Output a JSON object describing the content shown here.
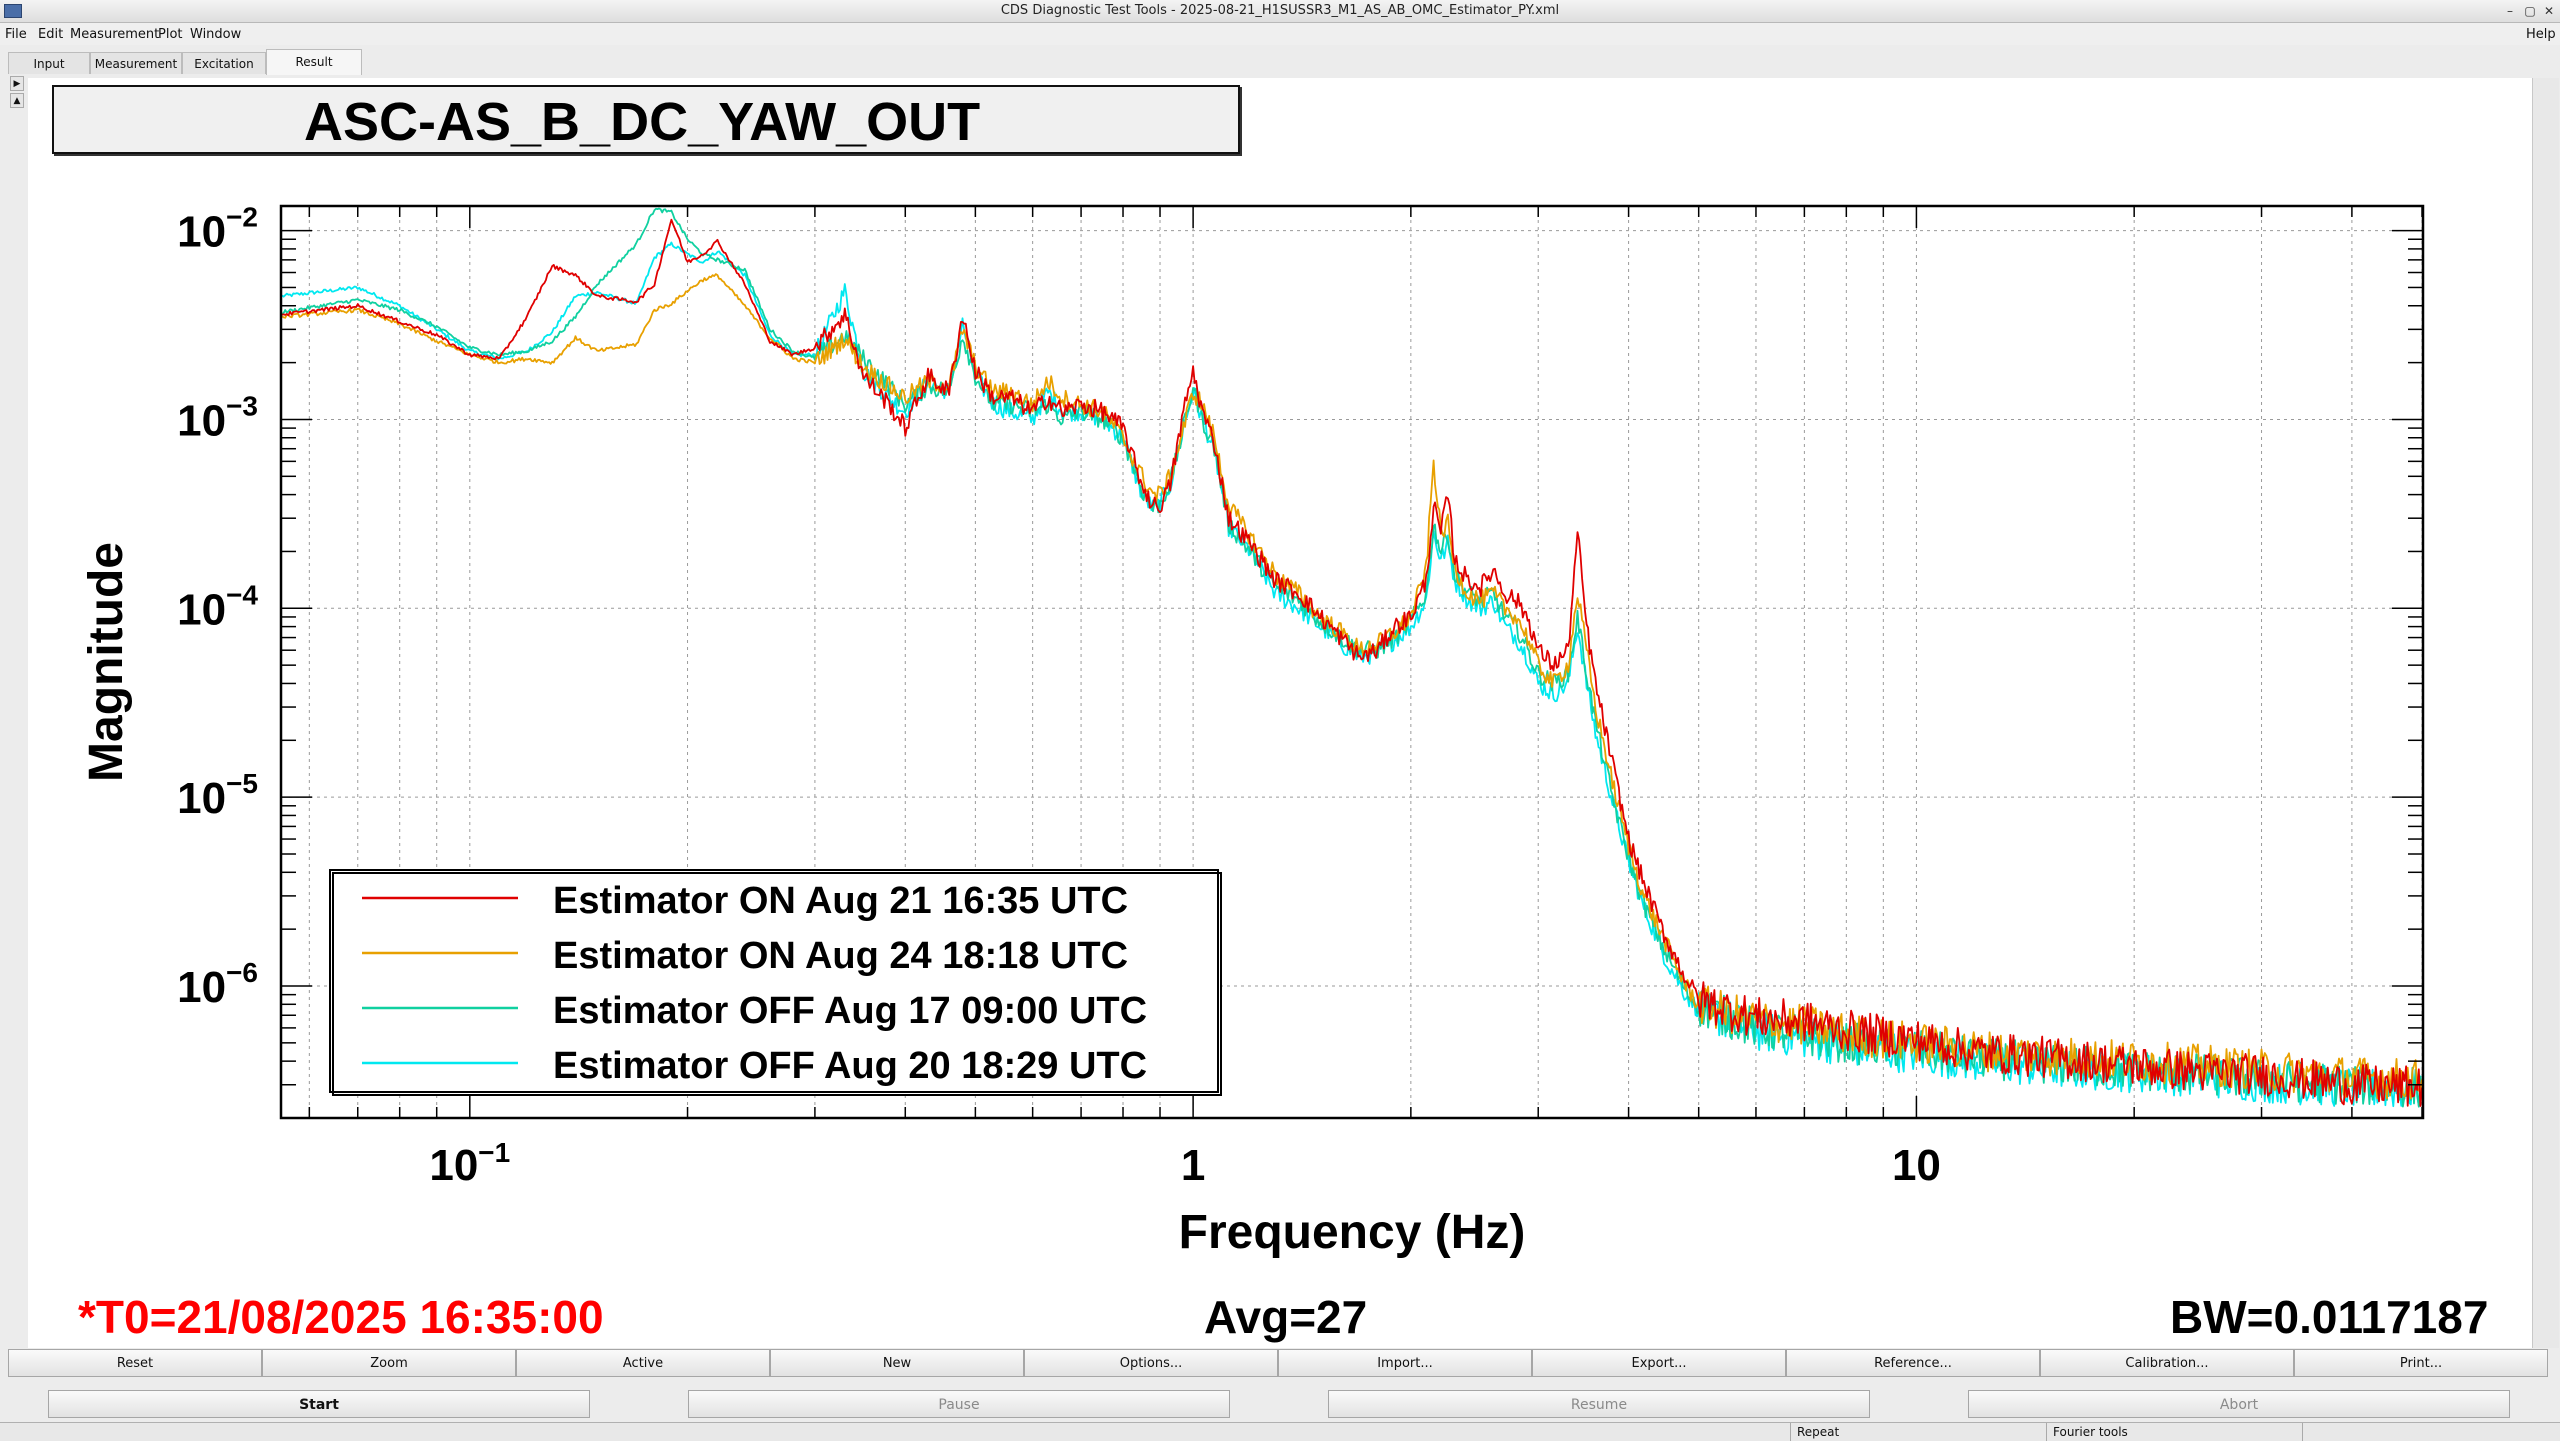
{
  "window": {
    "title": "CDS Diagnostic Test Tools - 2025-08-21_H1SUSSR3_M1_AS_AB_OMC_Estimator_PY.xml",
    "controls": [
      "–",
      "▢",
      "✕"
    ]
  },
  "menu": {
    "items": [
      "File",
      "Edit",
      "Measurement",
      "Plot",
      "Window"
    ],
    "help": "Help"
  },
  "tabs": [
    "Input",
    "Measurement",
    "Excitation",
    "Result"
  ],
  "active_tab": "Result",
  "plot": {
    "title": "ASC-AS_B_DC_YAW_OUT",
    "footer": {
      "t0": "*T0=21/08/2025 16:35:00",
      "avg": "Avg=27",
      "bw": "BW=0.0117187"
    },
    "colors": {
      "t0": "#ff0000"
    }
  },
  "chart_data": {
    "type": "line",
    "title": "ASC-AS_B_DC_YAW_OUT",
    "xlabel": "Frequency (Hz)",
    "ylabel": "Magnitude",
    "xscale": "log",
    "yscale": "log",
    "xlim": [
      0.055,
      50
    ],
    "ylim": [
      2e-07,
      0.0135
    ],
    "grid": true,
    "legend_position": "bottom-left",
    "x_tick_labels": [
      {
        "value": 0.1,
        "base": "10",
        "exp": "−1"
      },
      {
        "value": 1,
        "base": "1",
        "exp": ""
      },
      {
        "value": 10,
        "base": "10",
        "exp": ""
      }
    ],
    "y_tick_labels": [
      {
        "value": 0.01,
        "base": "10",
        "exp": "−2"
      },
      {
        "value": 0.001,
        "base": "10",
        "exp": "−3"
      },
      {
        "value": 0.0001,
        "base": "10",
        "exp": "−4"
      },
      {
        "value": 1e-05,
        "base": "10",
        "exp": "−5"
      },
      {
        "value": 1e-06,
        "base": "10",
        "exp": "−6"
      }
    ],
    "series": [
      {
        "name": "Estimator ON Aug 21 16:35 UTC",
        "color": "#e00000",
        "x": [
          0.055,
          0.07,
          0.08,
          0.09,
          0.1,
          0.11,
          0.12,
          0.13,
          0.14,
          0.15,
          0.17,
          0.18,
          0.19,
          0.2,
          0.21,
          0.22,
          0.24,
          0.26,
          0.28,
          0.3,
          0.33,
          0.35,
          0.38,
          0.4,
          0.43,
          0.46,
          0.48,
          0.5,
          0.53,
          0.56,
          0.6,
          0.63,
          0.66,
          0.7,
          0.75,
          0.8,
          0.85,
          0.88,
          0.9,
          0.93,
          0.97,
          1.0,
          1.03,
          1.07,
          1.12,
          1.2,
          1.3,
          1.4,
          1.5,
          1.6,
          1.7,
          1.8,
          1.9,
          2.0,
          2.1,
          2.15,
          2.2,
          2.25,
          2.3,
          2.4,
          2.5,
          2.6,
          2.7,
          2.8,
          2.9,
          3.0,
          3.15,
          3.3,
          3.4,
          3.5,
          3.6,
          3.8,
          4.0,
          4.2,
          4.5,
          4.8,
          5.0,
          5.5,
          6.0,
          7.0,
          8.0,
          10.0,
          12.0,
          15.0,
          20.0,
          25.0,
          30.0,
          40.0,
          50.0
        ],
        "y": [
          0.0036,
          0.004,
          0.0033,
          0.0028,
          0.0022,
          0.0021,
          0.0035,
          0.0065,
          0.0058,
          0.0045,
          0.0042,
          0.0052,
          0.0115,
          0.0068,
          0.0075,
          0.0088,
          0.0052,
          0.0026,
          0.0022,
          0.0024,
          0.0036,
          0.0017,
          0.0012,
          0.0009,
          0.0017,
          0.0014,
          0.0036,
          0.0018,
          0.0013,
          0.0013,
          0.0011,
          0.0013,
          0.0011,
          0.0012,
          0.0011,
          0.0009,
          0.00045,
          0.00035,
          0.00035,
          0.00045,
          0.0011,
          0.0018,
          0.0011,
          0.00075,
          0.0003,
          0.00022,
          0.00014,
          0.00012,
          9e-05,
          7e-05,
          5.5e-05,
          6e-05,
          8e-05,
          9e-05,
          0.00014,
          0.00035,
          0.00025,
          0.0004,
          0.00018,
          0.00014,
          0.00013,
          0.00016,
          0.00012,
          0.00011,
          9e-05,
          6e-05,
          5e-05,
          6e-05,
          0.00025,
          8e-05,
          4e-05,
          1.5e-05,
          6e-06,
          3.5e-06,
          1.8e-06,
          1.1e-06,
          8.5e-07,
          7.5e-07,
          6.8e-07,
          6.5e-07,
          5.8e-07,
          5.2e-07,
          4.5e-07,
          4.2e-07,
          3.8e-07,
          3.5e-07,
          3.4e-07,
          3e-07,
          2.9e-07
        ]
      },
      {
        "name": "Estimator ON Aug 24 18:18 UTC",
        "color": "#e8a000",
        "x": [
          0.055,
          0.07,
          0.08,
          0.09,
          0.1,
          0.11,
          0.12,
          0.13,
          0.14,
          0.15,
          0.17,
          0.18,
          0.19,
          0.2,
          0.21,
          0.22,
          0.24,
          0.26,
          0.28,
          0.3,
          0.33,
          0.35,
          0.38,
          0.4,
          0.43,
          0.46,
          0.48,
          0.5,
          0.53,
          0.56,
          0.6,
          0.63,
          0.66,
          0.7,
          0.75,
          0.8,
          0.85,
          0.88,
          0.9,
          0.93,
          0.97,
          1.0,
          1.03,
          1.07,
          1.12,
          1.2,
          1.3,
          1.4,
          1.5,
          1.6,
          1.7,
          1.8,
          1.9,
          2.0,
          2.1,
          2.15,
          2.2,
          2.25,
          2.3,
          2.4,
          2.5,
          2.6,
          2.7,
          2.8,
          2.9,
          3.0,
          3.15,
          3.3,
          3.4,
          3.5,
          3.6,
          3.8,
          4.0,
          4.2,
          4.5,
          4.8,
          5.0,
          5.5,
          6.0,
          7.0,
          8.0,
          10.0,
          12.0,
          15.0,
          20.0,
          25.0,
          30.0,
          40.0,
          50.0
        ],
        "y": [
          0.0035,
          0.0038,
          0.0032,
          0.0026,
          0.0022,
          0.002,
          0.0021,
          0.002,
          0.0027,
          0.0023,
          0.0025,
          0.0038,
          0.0041,
          0.0048,
          0.0055,
          0.0058,
          0.004,
          0.0027,
          0.0021,
          0.002,
          0.0027,
          0.0019,
          0.0015,
          0.0013,
          0.0016,
          0.0015,
          0.003,
          0.0019,
          0.0014,
          0.0014,
          0.0012,
          0.0016,
          0.0013,
          0.0012,
          0.0011,
          0.0008,
          0.0005,
          0.0004,
          0.0004,
          0.0005,
          0.0009,
          0.0014,
          0.0012,
          0.0008,
          0.00035,
          0.00024,
          0.00015,
          0.00012,
          9e-05,
          7.5e-05,
          6e-05,
          6.5e-05,
          7.5e-05,
          9e-05,
          0.00016,
          0.0006,
          0.00025,
          0.00028,
          0.00016,
          0.00012,
          0.00011,
          0.00012,
          0.0001,
          9e-05,
          7e-05,
          5e-05,
          4e-05,
          5e-05,
          0.00012,
          6e-05,
          3e-05,
          1.2e-05,
          5.5e-06,
          3e-06,
          1.7e-06,
          1e-06,
          8e-07,
          7.2e-07,
          6.6e-07,
          6.2e-07,
          5.6e-07,
          5e-07,
          4.6e-07,
          4.3e-07,
          4e-07,
          3.8e-07,
          3.6e-07,
          3.3e-07,
          3.2e-07
        ]
      },
      {
        "name": "Estimator OFF Aug 17 09:00 UTC",
        "color": "#10d0a0",
        "x": [
          0.055,
          0.07,
          0.08,
          0.09,
          0.1,
          0.11,
          0.12,
          0.13,
          0.14,
          0.15,
          0.17,
          0.18,
          0.19,
          0.2,
          0.21,
          0.22,
          0.24,
          0.26,
          0.28,
          0.3,
          0.33,
          0.35,
          0.38,
          0.4,
          0.43,
          0.46,
          0.48,
          0.5,
          0.53,
          0.56,
          0.6,
          0.63,
          0.66,
          0.7,
          0.75,
          0.8,
          0.85,
          0.88,
          0.9,
          0.93,
          0.97,
          1.0,
          1.03,
          1.07,
          1.12,
          1.2,
          1.3,
          1.4,
          1.5,
          1.6,
          1.7,
          1.8,
          1.9,
          2.0,
          2.1,
          2.15,
          2.2,
          2.25,
          2.3,
          2.4,
          2.5,
          2.6,
          2.7,
          2.8,
          2.9,
          3.0,
          3.15,
          3.3,
          3.4,
          3.5,
          3.6,
          3.8,
          4.0,
          4.2,
          4.5,
          4.8,
          5.0,
          5.5,
          6.0,
          7.0,
          8.0,
          10.0,
          12.0,
          15.0,
          20.0,
          25.0,
          30.0,
          40.0,
          50.0
        ],
        "y": [
          0.0037,
          0.0043,
          0.0038,
          0.0031,
          0.0024,
          0.0022,
          0.0023,
          0.0026,
          0.0035,
          0.0052,
          0.0085,
          0.013,
          0.0125,
          0.009,
          0.0075,
          0.007,
          0.0062,
          0.003,
          0.0023,
          0.0021,
          0.0028,
          0.0021,
          0.0015,
          0.0012,
          0.0015,
          0.0014,
          0.0028,
          0.0017,
          0.0012,
          0.0012,
          0.0011,
          0.0012,
          0.001,
          0.0011,
          0.001,
          0.0008,
          0.00042,
          0.00034,
          0.00036,
          0.00046,
          0.0009,
          0.0015,
          0.001,
          0.0007,
          0.00028,
          0.0002,
          0.00013,
          0.00011,
          8.5e-05,
          7e-05,
          6e-05,
          6e-05,
          7e-05,
          8.5e-05,
          0.00012,
          0.00028,
          0.0002,
          0.00025,
          0.00015,
          0.00012,
          0.00011,
          0.00012,
          9e-05,
          8e-05,
          6e-05,
          4.5e-05,
          4e-05,
          4.5e-05,
          9e-05,
          4.5e-05,
          2.5e-05,
          1e-05,
          4.8e-06,
          2.7e-06,
          1.5e-06,
          9.5e-07,
          7.8e-07,
          6.8e-07,
          6e-07,
          5.5e-07,
          5e-07,
          4.6e-07,
          4.2e-07,
          3.9e-07,
          3.6e-07,
          3.4e-07,
          3.2e-07,
          3e-07,
          2.9e-07
        ]
      },
      {
        "name": "Estimator OFF Aug 20 18:29 UTC",
        "color": "#00e8f0",
        "x": [
          0.055,
          0.07,
          0.08,
          0.09,
          0.1,
          0.11,
          0.12,
          0.13,
          0.14,
          0.15,
          0.17,
          0.18,
          0.19,
          0.2,
          0.21,
          0.22,
          0.24,
          0.26,
          0.28,
          0.3,
          0.33,
          0.35,
          0.38,
          0.4,
          0.43,
          0.46,
          0.48,
          0.5,
          0.53,
          0.56,
          0.6,
          0.63,
          0.66,
          0.7,
          0.75,
          0.8,
          0.85,
          0.88,
          0.9,
          0.93,
          0.97,
          1.0,
          1.03,
          1.07,
          1.12,
          1.2,
          1.3,
          1.4,
          1.5,
          1.6,
          1.7,
          1.8,
          1.9,
          2.0,
          2.1,
          2.15,
          2.2,
          2.25,
          2.3,
          2.4,
          2.5,
          2.6,
          2.7,
          2.8,
          2.9,
          3.0,
          3.15,
          3.3,
          3.4,
          3.5,
          3.6,
          3.8,
          4.0,
          4.2,
          4.5,
          4.8,
          5.0,
          5.5,
          6.0,
          7.0,
          8.0,
          10.0,
          12.0,
          15.0,
          20.0,
          25.0,
          30.0,
          40.0,
          50.0
        ],
        "y": [
          0.0045,
          0.005,
          0.004,
          0.003,
          0.0023,
          0.0021,
          0.0023,
          0.0029,
          0.0045,
          0.0047,
          0.0041,
          0.0072,
          0.0085,
          0.0075,
          0.0068,
          0.0078,
          0.0058,
          0.0028,
          0.0022,
          0.0022,
          0.0048,
          0.0018,
          0.0013,
          0.0011,
          0.0016,
          0.0014,
          0.0032,
          0.0017,
          0.0012,
          0.0011,
          0.001,
          0.0014,
          0.0011,
          0.0011,
          0.001,
          0.0008,
          0.0004,
          0.00034,
          0.00036,
          0.00045,
          0.0009,
          0.0014,
          0.001,
          0.00068,
          0.00027,
          0.0002,
          0.00012,
          0.0001,
          8e-05,
          6.5e-05,
          5.5e-05,
          5.8e-05,
          6.8e-05,
          8e-05,
          0.00011,
          0.00025,
          0.00018,
          0.00022,
          0.00014,
          0.00011,
          0.0001,
          0.00011,
          8e-05,
          7e-05,
          5.5e-05,
          4e-05,
          3.5e-05,
          4e-05,
          8e-05,
          4e-05,
          2.2e-05,
          9.5e-06,
          4.5e-06,
          2.6e-06,
          1.4e-06,
          9e-07,
          7.5e-07,
          6.6e-07,
          5.8e-07,
          5.3e-07,
          4.8e-07,
          4.4e-07,
          4e-07,
          3.7e-07,
          3.5e-07,
          3.3e-07,
          3.1e-07,
          2.9e-07,
          2.8e-07
        ]
      }
    ]
  },
  "buttons_row1": [
    "Reset",
    "Zoom",
    "Active",
    "New",
    "Options...",
    "Import...",
    "Export...",
    "Reference...",
    "Calibration...",
    "Print..."
  ],
  "buttons_row2": [
    {
      "label": "Start",
      "enabled": true
    },
    {
      "label": "Pause",
      "enabled": false
    },
    {
      "label": "Resume",
      "enabled": false
    },
    {
      "label": "Abort",
      "enabled": false
    }
  ],
  "status": [
    "",
    "Repeat",
    "Fourier tools",
    ""
  ]
}
